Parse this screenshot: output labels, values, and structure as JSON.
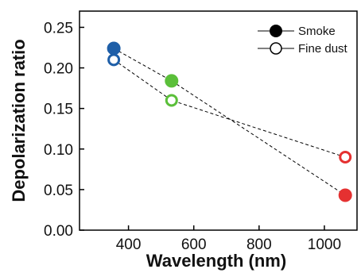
{
  "chart_data": {
    "type": "scatter",
    "title": "",
    "xlabel": "Wavelength (nm)",
    "ylabel": "Depolarization ratio",
    "xlim": [
      250,
      1100
    ],
    "ylim": [
      0,
      0.27
    ],
    "xticks": [
      400,
      600,
      800,
      1000
    ],
    "yticks": [
      0.0,
      0.05,
      0.1,
      0.15,
      0.2,
      0.25
    ],
    "xtick_labels": [
      "400",
      "600",
      "800",
      "1000"
    ],
    "ytick_labels": [
      "0.00",
      "0.05",
      "0.10",
      "0.15",
      "0.20",
      "0.25"
    ],
    "grid": false,
    "legend_position": "top-right",
    "x": [
      355,
      532,
      1064
    ],
    "point_colors": [
      "#1f5fa8",
      "#5bbf3a",
      "#e53131"
    ],
    "line_style": "dashed",
    "line_color": "#000000",
    "series": [
      {
        "name": "Smoke",
        "marker": "filled-circle",
        "values": [
          0.224,
          0.184,
          0.043
        ]
      },
      {
        "name": "Fine dust",
        "marker": "open-circle",
        "values": [
          0.21,
          0.16,
          0.09
        ]
      }
    ]
  }
}
